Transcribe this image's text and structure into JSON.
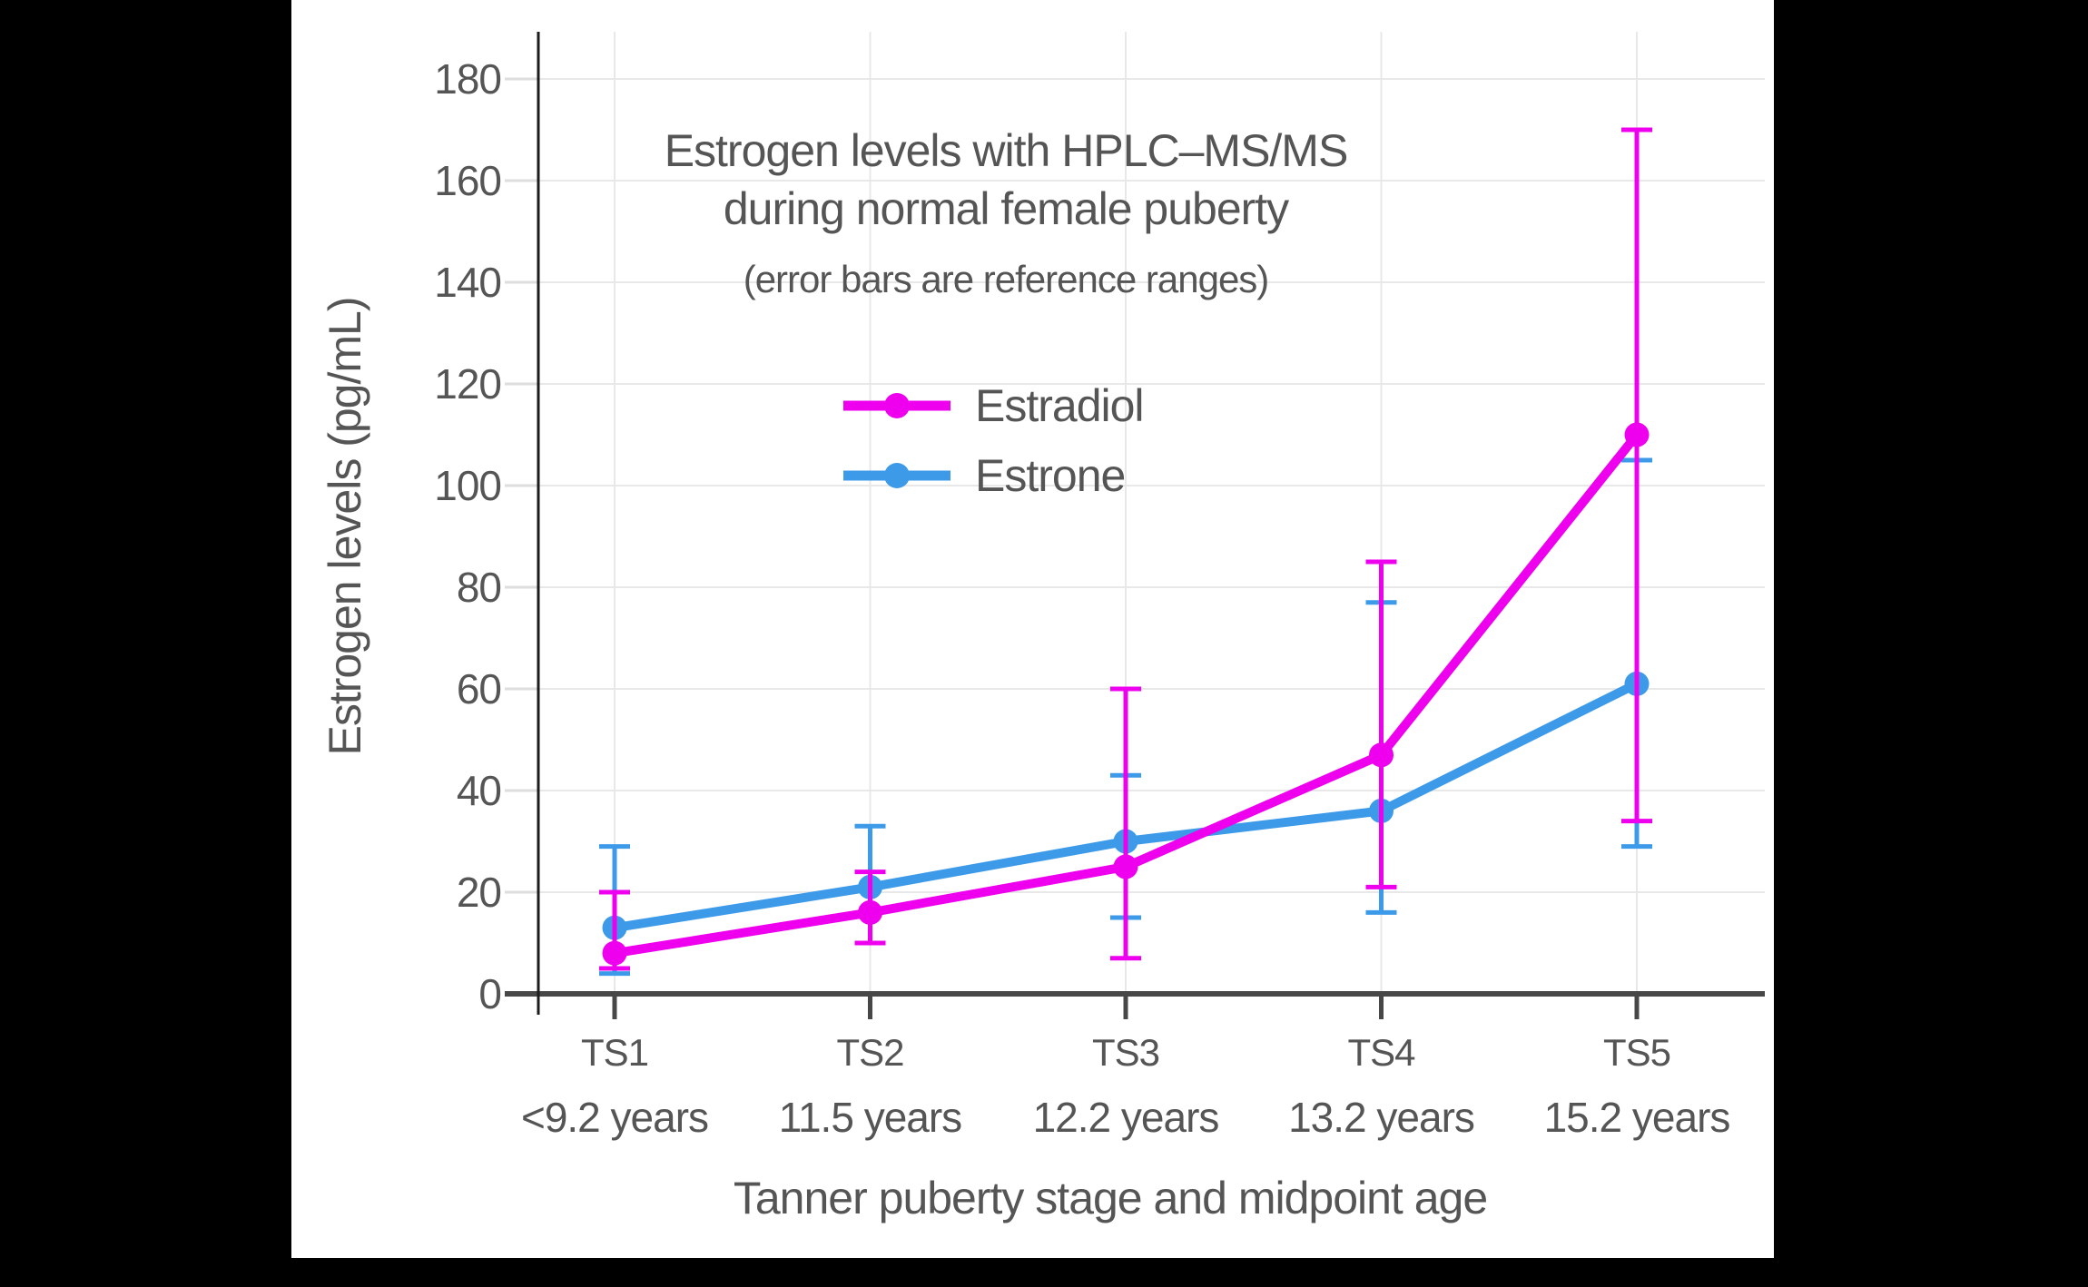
{
  "figure": {
    "canvas_background": "#000000",
    "plot_background": "#ffffff"
  },
  "chart_data": {
    "type": "line",
    "title_lines": [
      "Estrogen levels with HPLC–MS/MS",
      "during normal female puberty"
    ],
    "subtitle": "(error bars are reference ranges)",
    "xlabel": "Tanner puberty stage and midpoint age",
    "ylabel": "Estrogen levels (pg/mL)",
    "categories": [
      "TS1",
      "TS2",
      "TS3",
      "TS4",
      "TS5"
    ],
    "category_sublabels": [
      "<9.2 years",
      "11.5 years",
      "12.2 years",
      "13.2 years",
      "15.2 years"
    ],
    "y_ticks": [
      0,
      20,
      40,
      60,
      80,
      100,
      120,
      140,
      160,
      180
    ],
    "ylim": [
      0,
      190
    ],
    "grid": true,
    "legend_position": "inside-top-center",
    "error_bar_meaning": "reference ranges",
    "series": [
      {
        "name": "Estradiol",
        "color": "#ee00ee",
        "values": [
          8,
          16,
          25,
          47,
          110
        ],
        "err_low": [
          5,
          10,
          7,
          21,
          34
        ],
        "err_high": [
          20,
          24,
          60,
          85,
          170
        ]
      },
      {
        "name": "Estrone",
        "color": "#3d9ae8",
        "values": [
          13,
          21,
          30,
          36,
          61
        ],
        "err_low": [
          4,
          10,
          15,
          16,
          29
        ],
        "err_high": [
          29,
          33,
          43,
          77,
          105
        ]
      }
    ],
    "text_color": "#555555",
    "axis_color": "#474747",
    "grid_color": "#e8e8e8"
  }
}
